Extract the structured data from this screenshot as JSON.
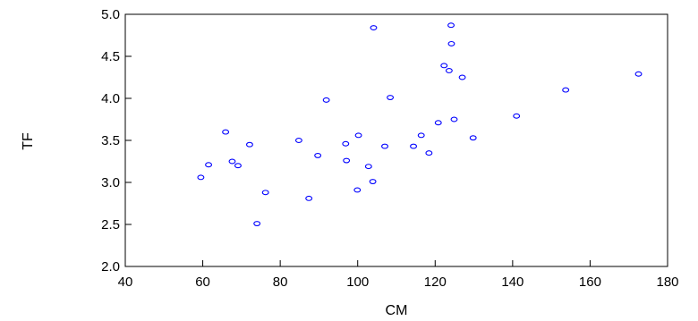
{
  "chart_data": {
    "type": "scatter",
    "xlabel": "CM",
    "ylabel": "TF",
    "xlim": [
      40,
      180
    ],
    "ylim": [
      2.0,
      5.0
    ],
    "x_ticks": [
      "40",
      "60",
      "80",
      "100",
      "120",
      "140",
      "160",
      "180"
    ],
    "y_ticks": [
      "2.0",
      "2.5",
      "3.0",
      "3.5",
      "4.0",
      "4.5",
      "5.0"
    ],
    "grid": false,
    "marker_color": "#0000ff",
    "marker": "hollow-circle",
    "points": [
      {
        "x": 59.5,
        "y": 3.06
      },
      {
        "x": 61.5,
        "y": 3.21
      },
      {
        "x": 65.9,
        "y": 3.6
      },
      {
        "x": 67.6,
        "y": 3.25
      },
      {
        "x": 69.1,
        "y": 3.2
      },
      {
        "x": 72.1,
        "y": 3.45
      },
      {
        "x": 74.0,
        "y": 2.51
      },
      {
        "x": 76.2,
        "y": 2.88
      },
      {
        "x": 84.8,
        "y": 3.5
      },
      {
        "x": 87.4,
        "y": 2.81
      },
      {
        "x": 89.7,
        "y": 3.32
      },
      {
        "x": 91.9,
        "y": 3.98
      },
      {
        "x": 96.9,
        "y": 3.46
      },
      {
        "x": 97.1,
        "y": 3.26
      },
      {
        "x": 99.9,
        "y": 2.91
      },
      {
        "x": 100.2,
        "y": 3.56
      },
      {
        "x": 102.8,
        "y": 3.19
      },
      {
        "x": 103.9,
        "y": 3.01
      },
      {
        "x": 104.1,
        "y": 4.84
      },
      {
        "x": 107.0,
        "y": 3.43
      },
      {
        "x": 108.4,
        "y": 4.01
      },
      {
        "x": 114.4,
        "y": 3.43
      },
      {
        "x": 116.4,
        "y": 3.56
      },
      {
        "x": 118.4,
        "y": 3.35
      },
      {
        "x": 120.8,
        "y": 3.71
      },
      {
        "x": 122.3,
        "y": 4.39
      },
      {
        "x": 123.6,
        "y": 4.33
      },
      {
        "x": 124.1,
        "y": 4.87
      },
      {
        "x": 124.2,
        "y": 4.65
      },
      {
        "x": 124.9,
        "y": 3.75
      },
      {
        "x": 127.0,
        "y": 4.25
      },
      {
        "x": 129.8,
        "y": 3.53
      },
      {
        "x": 141.0,
        "y": 3.79
      },
      {
        "x": 153.7,
        "y": 4.1
      },
      {
        "x": 172.5,
        "y": 4.29
      }
    ]
  }
}
